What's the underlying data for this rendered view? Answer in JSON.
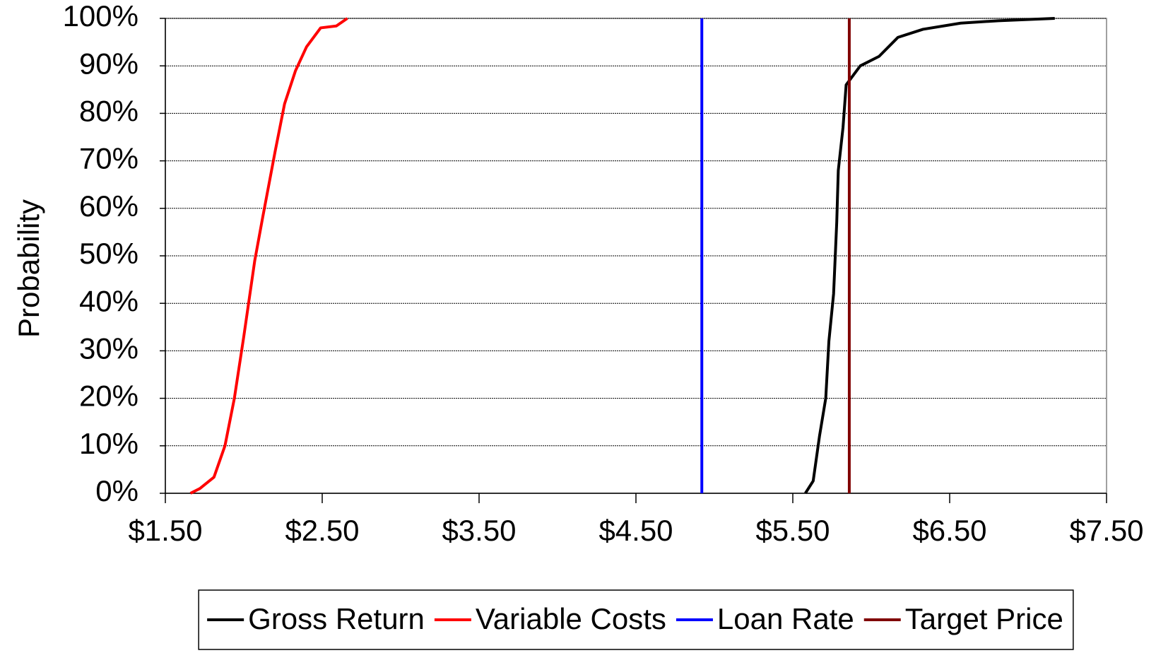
{
  "chart_data": {
    "type": "line",
    "y_label": "Probability",
    "xlim": [
      1.5,
      7.5
    ],
    "xticks": [
      {
        "value": 1.5,
        "label": "$1.50"
      },
      {
        "value": 2.5,
        "label": "$2.50"
      },
      {
        "value": 3.5,
        "label": "$3.50"
      },
      {
        "value": 4.5,
        "label": "$4.50"
      },
      {
        "value": 5.5,
        "label": "$5.50"
      },
      {
        "value": 6.5,
        "label": "$6.50"
      },
      {
        "value": 7.5,
        "label": "$7.50"
      }
    ],
    "ylim": [
      0,
      100
    ],
    "yticks": [
      {
        "value": 0,
        "label": "0%"
      },
      {
        "value": 10,
        "label": "10%"
      },
      {
        "value": 20,
        "label": "20%"
      },
      {
        "value": 30,
        "label": "30%"
      },
      {
        "value": 40,
        "label": "40%"
      },
      {
        "value": 50,
        "label": "50%"
      },
      {
        "value": 60,
        "label": "60%"
      },
      {
        "value": 70,
        "label": "70%"
      },
      {
        "value": 80,
        "label": "80%"
      },
      {
        "value": 90,
        "label": "90%"
      },
      {
        "value": 100,
        "label": "100%"
      }
    ],
    "grid": true,
    "legend": "bottom",
    "series": [
      {
        "name": "Gross Return",
        "color": "#000000",
        "x": [
          5.58,
          5.63,
          5.67,
          5.71,
          5.73,
          5.76,
          5.78,
          5.79,
          5.82,
          5.84,
          5.93,
          6.05,
          6.17,
          6.33,
          6.57,
          6.81,
          7.17
        ],
        "values": [
          0,
          2.6,
          12,
          20,
          32,
          42,
          57,
          68,
          77,
          86,
          90,
          92,
          96,
          97.7,
          99,
          99.5,
          100
        ]
      },
      {
        "name": "Variable Costs",
        "color": "#ff0000",
        "x": [
          1.66,
          1.72,
          1.81,
          1.88,
          1.94,
          2.0,
          2.07,
          2.12,
          2.16,
          2.2,
          2.26,
          2.33,
          2.4,
          2.49,
          2.59,
          2.66
        ],
        "values": [
          0,
          1,
          3.4,
          10,
          20,
          33,
          49,
          58,
          65,
          72,
          82,
          89,
          94,
          98,
          98.4,
          100
        ]
      },
      {
        "name": "Loan Rate",
        "color": "#0000ff",
        "x": [
          4.92,
          4.92
        ],
        "values": [
          0,
          100
        ]
      },
      {
        "name": "Target Price",
        "color": "#800000",
        "x": [
          5.86,
          5.86
        ],
        "values": [
          0,
          100
        ]
      }
    ]
  }
}
